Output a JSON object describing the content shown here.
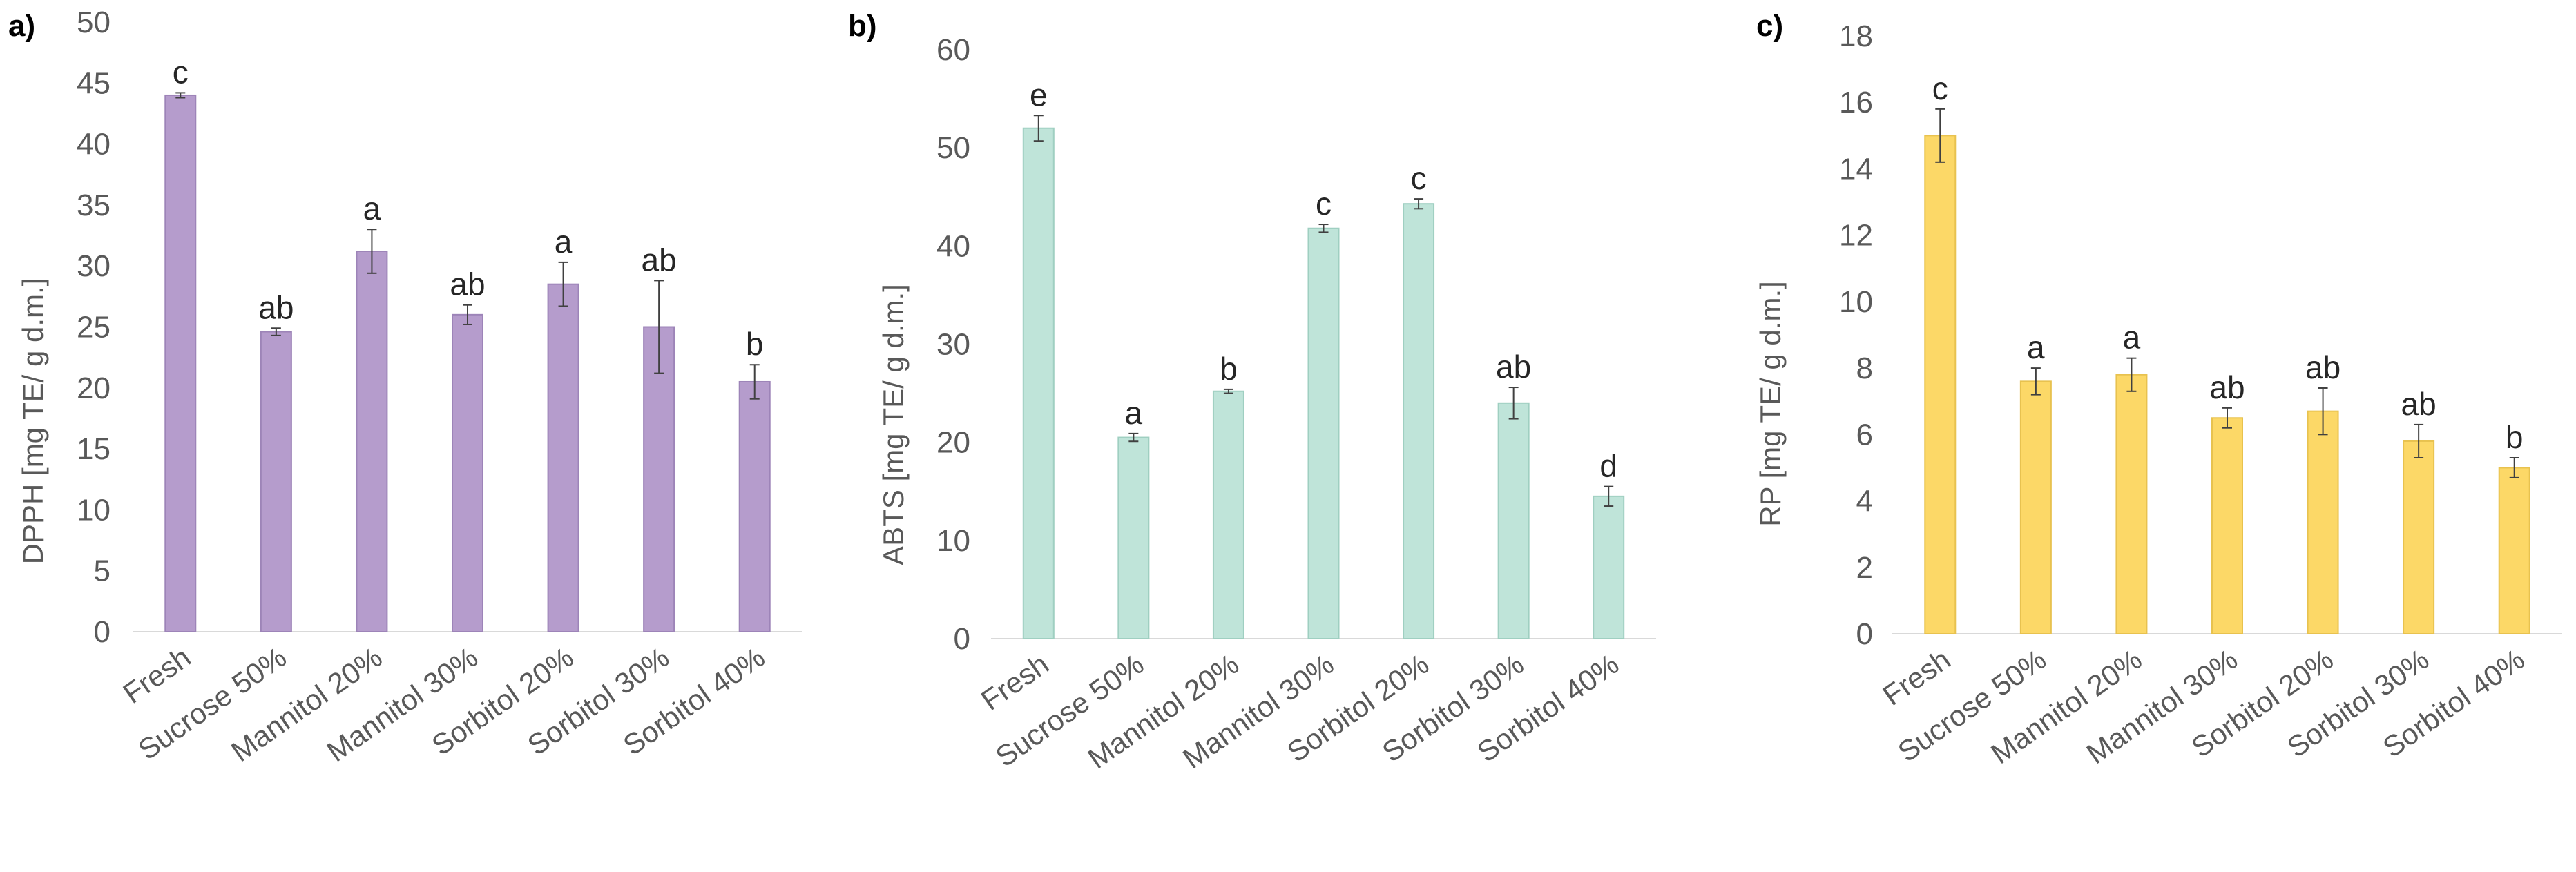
{
  "chart_data": [
    {
      "type": "bar",
      "panel_label": "a)",
      "ylabel": "DPPH [mg TE/ g d.m.]",
      "ylim": [
        0,
        50
      ],
      "yticks": [
        0,
        5,
        10,
        15,
        20,
        25,
        30,
        35,
        40,
        45,
        50
      ],
      "categories": [
        "Fresh",
        "Sucrose 50%",
        "Mannitol 20%",
        "Mannitol 30%",
        "Sorbitol 20%",
        "Sorbitol 30%",
        "Sorbitol 40%"
      ],
      "values": [
        44.0,
        24.6,
        31.2,
        26.0,
        28.5,
        25.0,
        20.5
      ],
      "errors": [
        0.2,
        0.3,
        1.8,
        0.8,
        1.8,
        3.8,
        1.4
      ],
      "significance": [
        "c",
        "ab",
        "a",
        "ab",
        "a",
        "ab",
        "b"
      ],
      "color": "#b59ccc",
      "edge_color": "#9d84b8",
      "grid": false
    },
    {
      "type": "bar",
      "panel_label": "b)",
      "ylabel": "ABTS [mg TE/ g d.m.]",
      "ylim": [
        0,
        60
      ],
      "yticks": [
        0,
        10,
        20,
        30,
        40,
        50,
        60
      ],
      "categories": [
        "Fresh",
        "Sucrose 50%",
        "Mannitol 20%",
        "Mannitol 30%",
        "Sorbitol 20%",
        "Sorbitol 30%",
        "Sorbitol 40%"
      ],
      "values": [
        52.0,
        20.5,
        25.2,
        41.8,
        44.3,
        24.0,
        14.5
      ],
      "errors": [
        1.3,
        0.4,
        0.2,
        0.4,
        0.5,
        1.6,
        1.0
      ],
      "significance": [
        "e",
        "a",
        "b",
        "c",
        "c",
        "ab",
        "d"
      ],
      "color": "#bfe4d9",
      "edge_color": "#9fcfc1",
      "grid": false
    },
    {
      "type": "bar",
      "panel_label": "c)",
      "ylabel": "RP [mg TE/ g d.m.]",
      "ylim": [
        0,
        18
      ],
      "yticks": [
        0,
        2,
        4,
        6,
        8,
        10,
        12,
        14,
        16,
        18
      ],
      "categories": [
        "Fresh",
        "Sucrose 50%",
        "Mannitol 20%",
        "Mannitol 30%",
        "Sorbitol 20%",
        "Sorbitol 30%",
        "Sorbitol 40%"
      ],
      "values": [
        15.0,
        7.6,
        7.8,
        6.5,
        6.7,
        5.8,
        5.0
      ],
      "errors": [
        0.8,
        0.4,
        0.5,
        0.3,
        0.7,
        0.5,
        0.3
      ],
      "significance": [
        "c",
        "a",
        "a",
        "ab",
        "ab",
        "ab",
        "b"
      ],
      "color": "#fcd867",
      "edge_color": "#e8c24f",
      "grid": false
    }
  ]
}
